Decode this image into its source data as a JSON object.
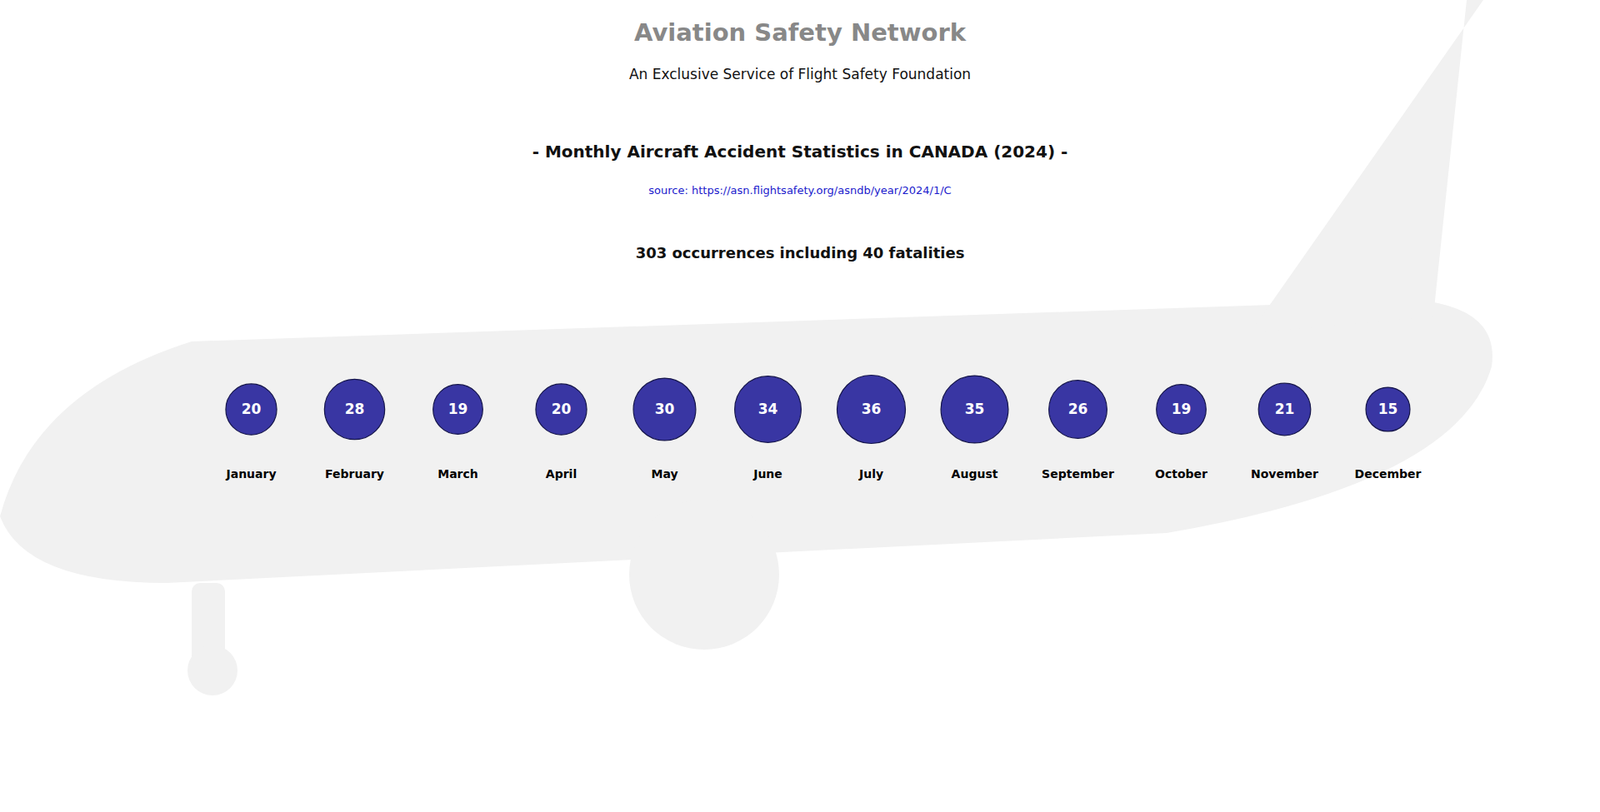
{
  "header": {
    "title": "Aviation Safety Network",
    "subtitle": "An Exclusive Service of Flight Safety Foundation"
  },
  "chart_data": {
    "type": "bubble",
    "title": "- Monthly Aircraft Accident Statistics in CANADA (2024) -",
    "source": "source: https://asn.flightsafety.org/asndb/year/2024/1/C",
    "subtitle": "303 occurrences including 40 fatalities",
    "categories": [
      "January",
      "February",
      "March",
      "April",
      "May",
      "June",
      "July",
      "August",
      "September",
      "October",
      "November",
      "December"
    ],
    "values": [
      20,
      28,
      19,
      20,
      30,
      34,
      36,
      35,
      26,
      19,
      21,
      15
    ],
    "color": "#2e2b9e",
    "data_labels": true,
    "tick_labels": "x"
  }
}
